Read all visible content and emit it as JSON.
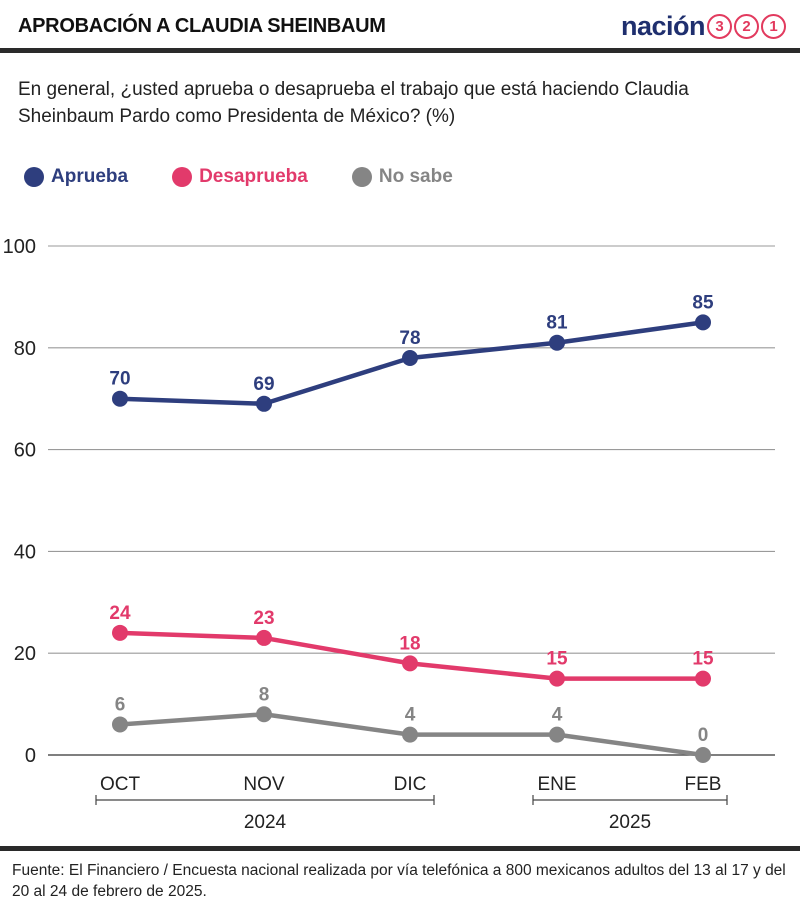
{
  "header": {
    "title": "APROBACIÓN A CLAUDIA SHEINBAUM",
    "brand_word": "nación",
    "brand_digits": [
      "3",
      "2",
      "1"
    ]
  },
  "question": "En general, ¿usted aprueba o desaprueba el trabajo que está haciendo Claudia Sheinbaum Pardo como Presidenta de México?  (%)",
  "colors": {
    "aprueba": "#2e3e7e",
    "desaprueba": "#e23a6b",
    "no_sabe": "#858585",
    "grid": "#9a9a9a"
  },
  "chart_data": {
    "type": "line",
    "categories": [
      "OCT",
      "NOV",
      "DIC",
      "ENE",
      "FEB"
    ],
    "year_groups": [
      {
        "label": "2024",
        "from": 0,
        "to": 2
      },
      {
        "label": "2025",
        "from": 3,
        "to": 4
      }
    ],
    "series": [
      {
        "name": "Aprueba",
        "color": "#2e3e7e",
        "values": [
          70,
          69,
          78,
          81,
          85
        ]
      },
      {
        "name": "Desaprueba",
        "color": "#e23a6b",
        "values": [
          24,
          23,
          18,
          15,
          15
        ]
      },
      {
        "name": "No sabe",
        "color": "#858585",
        "values": [
          6,
          8,
          4,
          4,
          0
        ]
      }
    ],
    "ylim": [
      0,
      100
    ],
    "yticks": [
      0,
      20,
      40,
      60,
      80,
      100
    ],
    "grid": true,
    "legend": "top-left"
  },
  "source": "Fuente: El Financiero / Encuesta nacional realizada por vía telefónica a 800 mexicanos adultos del 13 al 17 y del 20 al 24 de febrero de 2025."
}
